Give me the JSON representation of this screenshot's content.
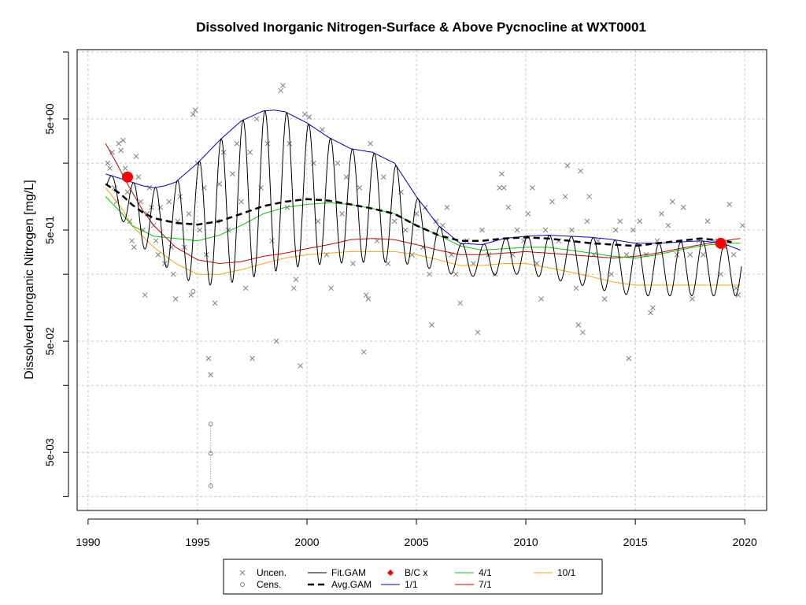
{
  "chart_data": {
    "type": "line",
    "title": "Dissolved Inorganic Nitrogen-Surface & Above Pycnocline at WXT0001",
    "xlabel": "",
    "ylabel": "Dissolved Inorganic Nitrogen [mg/L]",
    "xlim": [
      1989.5,
      2021.0
    ],
    "ylim": [
      0.0015,
      21.0
    ],
    "y_scale": "log",
    "x_ticks": [
      1990,
      1995,
      2000,
      2005,
      2010,
      2015,
      2020
    ],
    "x_tick_labels": [
      "1990",
      "1995",
      "2000",
      "2005",
      "2010",
      "2015",
      "2020"
    ],
    "y_ticks": [
      0.005,
      0.05,
      0.5,
      5
    ],
    "y_tick_labels": [
      "5e-03",
      "5e-02",
      "5e-01",
      "5e+00"
    ],
    "y_minor_grid": [
      0.002,
      0.02,
      0.2,
      2,
      20
    ],
    "grid": true,
    "legend_position": "bottom",
    "colors": {
      "fit_gam": "#000000",
      "avg_gam": "#000000",
      "jan": "#0000cd",
      "apr": "#00cd00",
      "jul": "#cd0000",
      "oct": "#ffa500",
      "bc": "#ff0000",
      "points": "#7f7f7f"
    },
    "legend": [
      {
        "key": "uncen",
        "label": "Uncen.",
        "symbol": "x"
      },
      {
        "key": "fit",
        "label": "Fit.GAM",
        "symbol": "line"
      },
      {
        "key": "bc",
        "label": "B/C x",
        "symbol": "diamond"
      },
      {
        "key": "apr",
        "label": "4/1",
        "symbol": "line"
      },
      {
        "key": "oct",
        "label": "10/1",
        "symbol": "line"
      },
      {
        "key": "cens",
        "label": "Cens.",
        "symbol": "circle"
      },
      {
        "key": "avg",
        "label": "Avg.GAM",
        "symbol": "dash"
      },
      {
        "key": "jan",
        "label": "1/1",
        "symbol": "line"
      },
      {
        "key": "jul",
        "label": "7/1",
        "symbol": "line"
      }
    ],
    "series": [
      {
        "name": "1/1",
        "x": [
          1990.8,
          1991.5,
          1992.0,
          1992.5,
          1993.0,
          1993.5,
          1994.0,
          1995.0,
          1996.0,
          1997.0,
          1998.0,
          1998.5,
          1999.0,
          2000.0,
          2001.0,
          2002.0,
          2003.0,
          2004.0,
          2005.0,
          2006.0,
          2007.0,
          2008.0,
          2009.0,
          2010.0,
          2011.0,
          2012.0,
          2013.0,
          2014.0,
          2015.0,
          2016.0,
          2017.0,
          2018.0,
          2019.0,
          2019.8
        ],
        "y": [
          1.6,
          1.45,
          1.35,
          1.25,
          1.2,
          1.25,
          1.35,
          2.0,
          3.2,
          4.8,
          5.9,
          6.0,
          5.8,
          4.6,
          3.4,
          2.7,
          2.5,
          2.0,
          1.0,
          0.55,
          0.38,
          0.37,
          0.42,
          0.44,
          0.45,
          0.44,
          0.43,
          0.41,
          0.38,
          0.38,
          0.39,
          0.4,
          0.38,
          0.33
        ]
      },
      {
        "name": "4/1",
        "x": [
          1990.8,
          1991.5,
          1992.0,
          1993.0,
          1994.0,
          1995.0,
          1996.0,
          1997.0,
          1998.0,
          1999.0,
          2000.0,
          2001.0,
          2002.0,
          2003.0,
          2004.0,
          2005.0,
          2006.0,
          2007.0,
          2008.0,
          2009.0,
          2010.0,
          2011.0,
          2012.0,
          2013.0,
          2014.0,
          2015.0,
          2016.0,
          2017.0,
          2018.0,
          2019.0,
          2019.8
        ],
        "y": [
          1.0,
          0.72,
          0.55,
          0.44,
          0.42,
          0.4,
          0.45,
          0.55,
          0.7,
          0.8,
          0.85,
          0.88,
          0.85,
          0.78,
          0.7,
          0.55,
          0.45,
          0.36,
          0.33,
          0.34,
          0.35,
          0.35,
          0.33,
          0.31,
          0.29,
          0.28,
          0.3,
          0.33,
          0.36,
          0.38,
          0.38
        ]
      },
      {
        "name": "7/1",
        "x": [
          1990.8,
          1991.3,
          1991.8,
          1992.5,
          1993.0,
          1994.0,
          1995.0,
          1996.0,
          1997.0,
          1998.0,
          1999.0,
          2000.0,
          2001.0,
          2002.0,
          2003.0,
          2004.0,
          2005.0,
          2006.0,
          2007.0,
          2008.0,
          2009.0,
          2010.0,
          2011.0,
          2012.0,
          2013.0,
          2014.0,
          2015.0,
          2016.0,
          2017.0,
          2018.0,
          2019.0,
          2019.8
        ],
        "y": [
          3.0,
          2.0,
          1.3,
          0.75,
          0.55,
          0.35,
          0.27,
          0.25,
          0.26,
          0.29,
          0.31,
          0.34,
          0.37,
          0.41,
          0.42,
          0.41,
          0.37,
          0.33,
          0.3,
          0.3,
          0.31,
          0.32,
          0.31,
          0.3,
          0.29,
          0.28,
          0.29,
          0.31,
          0.34,
          0.37,
          0.4,
          0.42
        ]
      },
      {
        "name": "10/1",
        "x": [
          1990.8,
          1991.5,
          1992.0,
          1993.0,
          1994.0,
          1995.0,
          1996.0,
          1997.0,
          1998.0,
          1999.0,
          2000.0,
          2001.0,
          2002.0,
          2003.0,
          2004.0,
          2005.0,
          2006.0,
          2007.0,
          2008.0,
          2009.0,
          2010.0,
          2011.0,
          2012.0,
          2013.0,
          2014.0,
          2015.0,
          2016.0,
          2017.0,
          2018.0,
          2019.0,
          2019.8
        ],
        "y": [
          1.2,
          0.8,
          0.55,
          0.35,
          0.25,
          0.2,
          0.2,
          0.22,
          0.25,
          0.28,
          0.3,
          0.31,
          0.32,
          0.32,
          0.32,
          0.3,
          0.27,
          0.24,
          0.24,
          0.25,
          0.25,
          0.23,
          0.21,
          0.19,
          0.17,
          0.16,
          0.16,
          0.16,
          0.16,
          0.16,
          0.16
        ]
      },
      {
        "name": "Avg.GAM",
        "x": [
          1990.8,
          1991.5,
          1992.0,
          1992.5,
          1993.0,
          1994.0,
          1995.0,
          1996.0,
          1997.0,
          1998.0,
          1999.0,
          2000.0,
          2001.0,
          2002.0,
          2003.0,
          2004.0,
          2005.0,
          2006.0,
          2007.0,
          2008.0,
          2009.0,
          2010.0,
          2011.0,
          2012.0,
          2013.0,
          2014.0,
          2015.0,
          2016.0,
          2017.0,
          2018.0,
          2019.0,
          2019.4
        ],
        "y": [
          1.3,
          1.05,
          0.85,
          0.72,
          0.64,
          0.58,
          0.56,
          0.6,
          0.7,
          0.82,
          0.9,
          0.95,
          0.92,
          0.85,
          0.78,
          0.7,
          0.55,
          0.45,
          0.4,
          0.4,
          0.42,
          0.43,
          0.42,
          0.4,
          0.38,
          0.37,
          0.36,
          0.38,
          0.4,
          0.42,
          0.4,
          0.39
        ]
      }
    ],
    "fit_gam": {
      "name": "Fit.GAM",
      "start_year": 1990.85,
      "end_year": 2019.85,
      "peak_phase": 0.08
    },
    "bc_points": [
      {
        "x": 1991.8,
        "y": 1.5
      },
      {
        "x": 2018.9,
        "y": 0.38
      }
    ],
    "uncensored_points": [
      [
        1990.9,
        2.0
      ],
      [
        1991.0,
        1.8
      ],
      [
        1991.1,
        2.5
      ],
      [
        1991.2,
        1.2
      ],
      [
        1991.3,
        0.9
      ],
      [
        1991.4,
        3.0
      ],
      [
        1991.5,
        2.6
      ],
      [
        1991.6,
        3.2
      ],
      [
        1991.7,
        1.8
      ],
      [
        1991.8,
        1.1
      ],
      [
        1991.9,
        0.6
      ],
      [
        1992.0,
        0.4
      ],
      [
        1992.1,
        0.35
      ],
      [
        1992.2,
        2.3
      ],
      [
        1992.3,
        1.5
      ],
      [
        1992.4,
        0.9
      ],
      [
        1992.5,
        0.5
      ],
      [
        1992.6,
        0.13
      ],
      [
        1992.7,
        0.7
      ],
      [
        1992.8,
        1.2
      ],
      [
        1992.9,
        0.8
      ],
      [
        1993.0,
        0.55
      ],
      [
        1993.1,
        0.4
      ],
      [
        1993.2,
        0.3
      ],
      [
        1993.3,
        0.8
      ],
      [
        1993.5,
        0.25
      ],
      [
        1993.7,
        0.9
      ],
      [
        1993.8,
        0.35
      ],
      [
        1993.9,
        0.2
      ],
      [
        1994.0,
        0.12
      ],
      [
        1994.1,
        0.6
      ],
      [
        1994.2,
        1.0
      ],
      [
        1994.4,
        0.35
      ],
      [
        1994.6,
        0.7
      ],
      [
        1994.7,
        0.13
      ],
      [
        1994.8,
        5.5
      ],
      [
        1994.9,
        6.0
      ],
      [
        1995.0,
        2.0
      ],
      [
        1995.1,
        0.5
      ],
      [
        1995.3,
        1.2
      ],
      [
        1995.4,
        0.3
      ],
      [
        1995.5,
        0.035
      ],
      [
        1995.6,
        0.025
      ],
      [
        1995.8,
        0.11
      ],
      [
        1995.9,
        0.6
      ],
      [
        1996.0,
        1.3
      ],
      [
        1996.2,
        2.5
      ],
      [
        1996.4,
        0.5
      ],
      [
        1996.6,
        1.6
      ],
      [
        1996.8,
        3.0
      ],
      [
        1997.0,
        0.9
      ],
      [
        1997.2,
        0.15
      ],
      [
        1997.4,
        2.5
      ],
      [
        1997.5,
        0.035
      ],
      [
        1997.7,
        5.0
      ],
      [
        1997.9,
        1.2
      ],
      [
        1998.2,
        3.0
      ],
      [
        1998.4,
        0.4
      ],
      [
        1998.6,
        0.05
      ],
      [
        1998.8,
        9.0
      ],
      [
        1998.9,
        10.0
      ],
      [
        1999.1,
        0.8
      ],
      [
        1999.2,
        3.0
      ],
      [
        1999.4,
        0.15
      ],
      [
        1999.5,
        0.18
      ],
      [
        1999.7,
        0.03
      ],
      [
        1999.9,
        5.5
      ],
      [
        2000.1,
        5.2
      ],
      [
        2000.3,
        2.0
      ],
      [
        2000.5,
        0.6
      ],
      [
        2000.7,
        4.0
      ],
      [
        2000.9,
        0.3
      ],
      [
        2001.1,
        0.15
      ],
      [
        2001.4,
        2.0
      ],
      [
        2001.6,
        0.7
      ],
      [
        2001.8,
        1.5
      ],
      [
        2002.1,
        0.25
      ],
      [
        2002.4,
        1.2
      ],
      [
        2002.6,
        0.04
      ],
      [
        2002.7,
        0.13
      ],
      [
        2002.8,
        0.12
      ],
      [
        2002.9,
        3.0
      ],
      [
        2003.2,
        0.4
      ],
      [
        2003.5,
        1.5
      ],
      [
        2003.7,
        0.25
      ],
      [
        2004.0,
        0.6
      ],
      [
        2004.3,
        1.1
      ],
      [
        2004.5,
        0.5
      ],
      [
        2004.8,
        0.3
      ],
      [
        2005.0,
        0.7
      ],
      [
        2005.3,
        0.35
      ],
      [
        2005.4,
        0.8
      ],
      [
        2005.6,
        0.2
      ],
      [
        2005.7,
        0.07
      ],
      [
        2005.9,
        0.6
      ],
      [
        2006.2,
        0.55
      ],
      [
        2006.4,
        0.8
      ],
      [
        2006.6,
        0.3
      ],
      [
        2006.8,
        0.2
      ],
      [
        2007.0,
        0.11
      ],
      [
        2007.3,
        0.4
      ],
      [
        2007.6,
        0.25
      ],
      [
        2007.8,
        0.06
      ],
      [
        2008.0,
        0.5
      ],
      [
        2008.3,
        0.3
      ],
      [
        2008.6,
        0.2
      ],
      [
        2008.8,
        1.2
      ],
      [
        2008.9,
        1.6
      ],
      [
        2009.0,
        1.2
      ],
      [
        2009.2,
        0.8
      ],
      [
        2009.4,
        0.3
      ],
      [
        2009.6,
        0.5
      ],
      [
        2009.9,
        0.4
      ],
      [
        2010.1,
        0.7
      ],
      [
        2010.3,
        1.2
      ],
      [
        2010.5,
        0.25
      ],
      [
        2010.7,
        0.12
      ],
      [
        2010.9,
        0.5
      ],
      [
        2011.2,
        0.9
      ],
      [
        2011.5,
        0.4
      ],
      [
        2011.8,
        1.0
      ],
      [
        2011.9,
        1.9
      ],
      [
        2012.1,
        0.5
      ],
      [
        2012.3,
        0.15
      ],
      [
        2012.4,
        0.07
      ],
      [
        2012.5,
        1.7
      ],
      [
        2012.6,
        0.06
      ],
      [
        2012.8,
        0.6
      ],
      [
        2012.9,
        1.0
      ],
      [
        2013.1,
        0.3
      ],
      [
        2013.3,
        0.4
      ],
      [
        2013.6,
        0.12
      ],
      [
        2013.9,
        0.2
      ],
      [
        2014.1,
        0.5
      ],
      [
        2014.3,
        0.6
      ],
      [
        2014.6,
        0.3
      ],
      [
        2014.7,
        0.035
      ],
      [
        2014.9,
        0.5
      ],
      [
        2015.2,
        0.6
      ],
      [
        2015.5,
        0.3
      ],
      [
        2015.7,
        0.09
      ],
      [
        2015.8,
        0.1
      ],
      [
        2016.0,
        0.4
      ],
      [
        2016.2,
        0.7
      ],
      [
        2016.5,
        0.55
      ],
      [
        2016.7,
        0.9
      ],
      [
        2016.9,
        0.3
      ],
      [
        2017.2,
        0.8
      ],
      [
        2017.5,
        0.3
      ],
      [
        2017.6,
        0.12
      ],
      [
        2017.9,
        0.4
      ],
      [
        2018.1,
        0.3
      ],
      [
        2018.3,
        0.6
      ],
      [
        2018.6,
        0.4
      ],
      [
        2018.9,
        0.2
      ],
      [
        2019.1,
        0.35
      ],
      [
        2019.3,
        0.85
      ],
      [
        2019.5,
        0.3
      ],
      [
        2019.6,
        0.15
      ],
      [
        2019.7,
        0.13
      ],
      [
        2019.9,
        0.55
      ]
    ],
    "censored_points": [
      [
        1994.8,
        0.14
      ],
      [
        1995.6,
        0.009
      ],
      [
        1995.6,
        0.0049
      ],
      [
        1995.6,
        0.0025
      ]
    ],
    "censored_interval": {
      "x": 1995.6,
      "y_low": 0.0025,
      "y_high": 0.009
    }
  }
}
